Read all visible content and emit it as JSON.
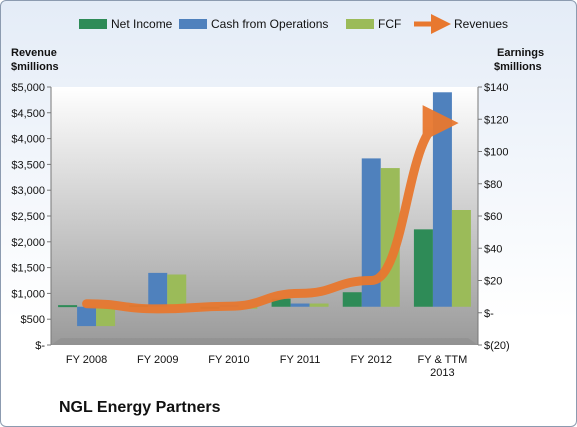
{
  "chart_data": {
    "type": "bar",
    "title": "",
    "company": "NGL Energy Partners",
    "categories": [
      "FY 2008",
      "FY 2009",
      "FY 2010",
      "FY 2011",
      "FY 2012",
      "FY & TTM 2013"
    ],
    "left_axis": {
      "title_line1": "Revenue",
      "title_line2": "$millions",
      "ylim": [
        0,
        5000
      ],
      "ticks": [
        0,
        500,
        1000,
        1500,
        2000,
        2500,
        3000,
        3500,
        4000,
        4500,
        5000
      ],
      "tick_labels": [
        "$-",
        "$500",
        "$1,000",
        "$1,500",
        "$2,000",
        "$2,500",
        "$3,000",
        "$3,500",
        "$4,000",
        "$4,500",
        "$5,000"
      ]
    },
    "right_axis": {
      "title_line1": "Earnings",
      "title_line2": "$millions",
      "ylim": [
        -20,
        140
      ],
      "ticks": [
        -20,
        0,
        20,
        40,
        60,
        80,
        100,
        120,
        140
      ],
      "tick_labels": [
        "$(20)",
        "$-",
        "$20",
        "$40",
        "$60",
        "$80",
        "$100",
        "$120",
        "$140"
      ]
    },
    "series": [
      {
        "name": "Net Income",
        "axis": "right",
        "kind": "bar",
        "color": "#2e8b57",
        "values": [
          1,
          1,
          0,
          5,
          9,
          48
        ]
      },
      {
        "name": "Cash from Operations",
        "axis": "right",
        "kind": "bar",
        "color": "#4f81bd",
        "values": [
          -12,
          21,
          1,
          2,
          92,
          133
        ]
      },
      {
        "name": "FCF",
        "axis": "right",
        "kind": "bar",
        "color": "#9bbb59",
        "values": [
          -12,
          20,
          0,
          2,
          86,
          60
        ]
      },
      {
        "name": "Revenues",
        "axis": "left",
        "kind": "line",
        "color": "#e8782f",
        "values": [
          800,
          700,
          750,
          1000,
          1250,
          4300
        ]
      }
    ],
    "grid": false,
    "legend_position": "top"
  }
}
